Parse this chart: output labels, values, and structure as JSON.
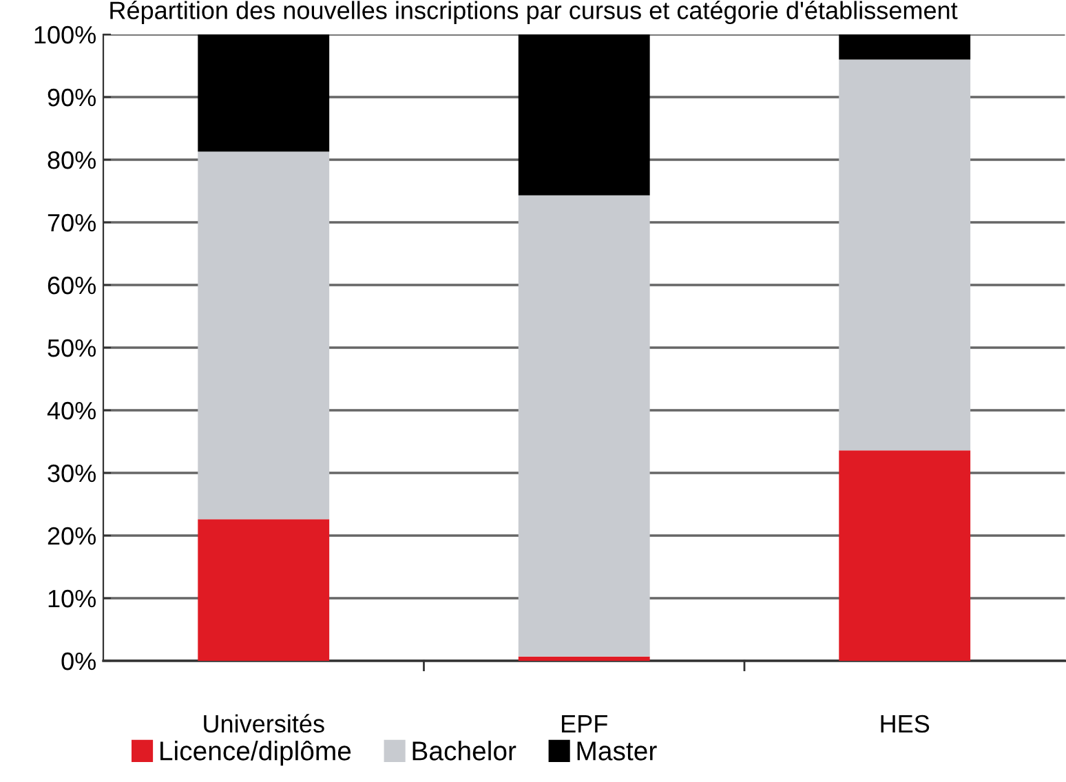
{
  "chart_data": {
    "type": "bar",
    "stacked": true,
    "title": "Répartition des nouvelles inscriptions par cursus et catégorie d'établissement",
    "categories": [
      "Universités",
      "EPF",
      "HES"
    ],
    "series": [
      {
        "name": "Licence/diplôme",
        "color": "#e01b24",
        "values": [
          22.6,
          0.7,
          33.6
        ]
      },
      {
        "name": "Bachelor",
        "color": "#c8cbd0",
        "values": [
          58.7,
          73.6,
          62.4
        ]
      },
      {
        "name": "Master",
        "color": "#000000",
        "values": [
          18.7,
          25.7,
          4.0
        ]
      }
    ],
    "ylim": [
      0,
      100
    ],
    "yticks": [
      {
        "value": 0,
        "label": "0%"
      },
      {
        "value": 10,
        "label": "10%"
      },
      {
        "value": 20,
        "label": "20%"
      },
      {
        "value": 30,
        "label": "30%"
      },
      {
        "value": 40,
        "label": "40%"
      },
      {
        "value": 50,
        "label": "50%"
      },
      {
        "value": 60,
        "label": "60%"
      },
      {
        "value": 70,
        "label": "70%"
      },
      {
        "value": 80,
        "label": "80%"
      },
      {
        "value": 90,
        "label": "90%"
      },
      {
        "value": 100,
        "label": "100%"
      }
    ],
    "grid": "y",
    "legend": "bottom"
  }
}
